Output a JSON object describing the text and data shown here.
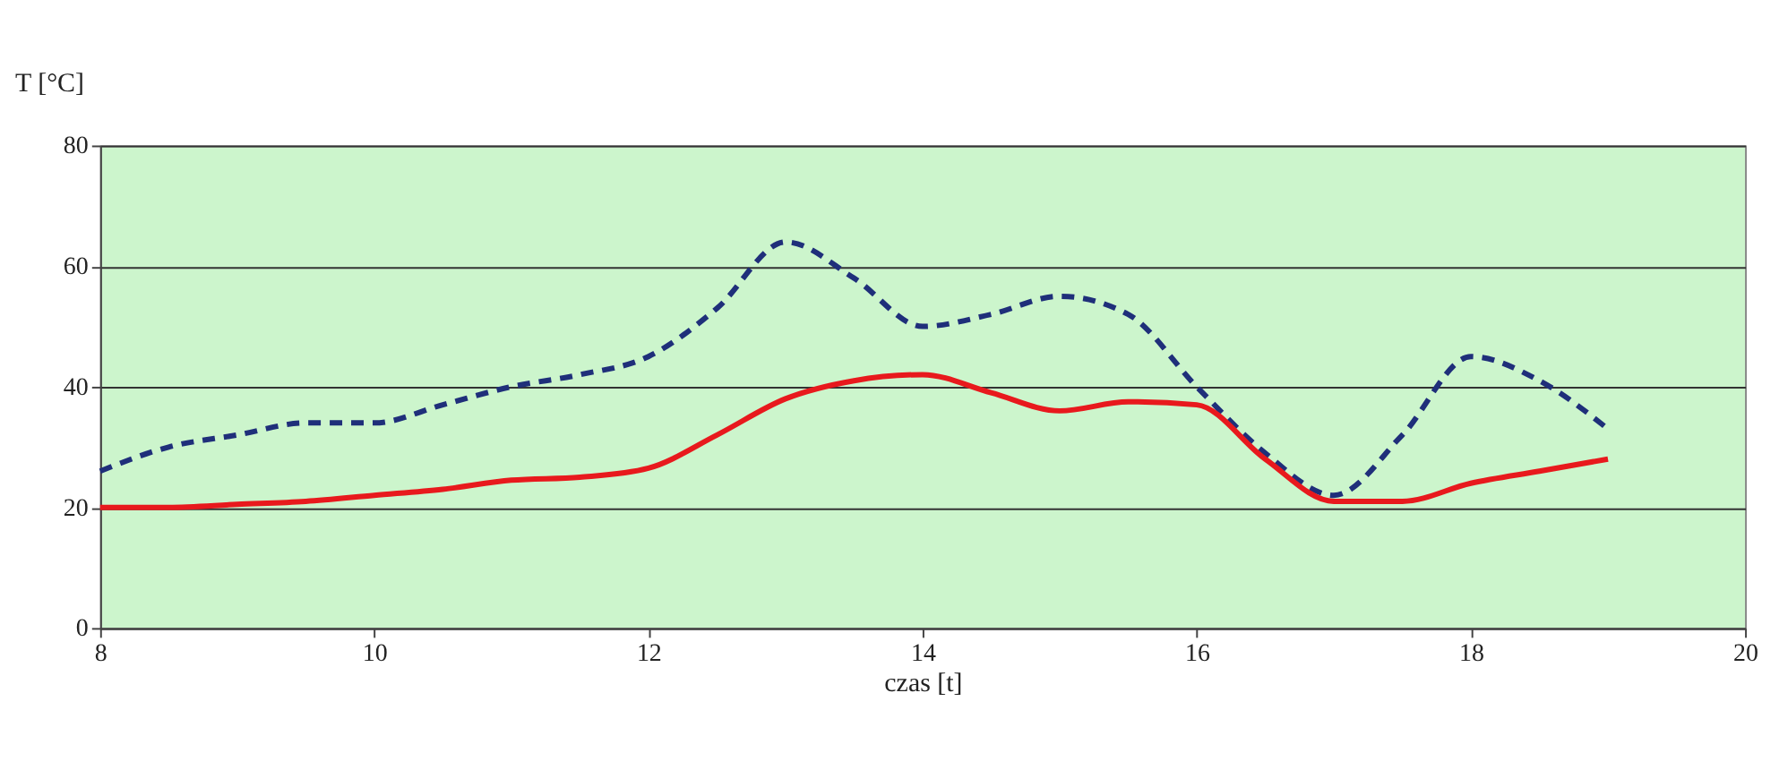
{
  "chart_data": {
    "type": "line",
    "xlabel": "czas [t]",
    "ylabel": "T [°C]",
    "xlim": [
      8,
      20
    ],
    "xticks": [
      8,
      10,
      12,
      14,
      16,
      18,
      20
    ],
    "ylim": [
      0,
      80
    ],
    "yticks": [
      0,
      20,
      40,
      60,
      80
    ],
    "grid": "y",
    "marker": "none",
    "x": [
      8,
      8.5,
      9,
      9.5,
      10,
      10.5,
      11,
      11.5,
      12,
      12.5,
      13,
      13.5,
      14,
      14.5,
      15,
      15.5,
      16,
      16.5,
      17,
      17.5,
      18,
      18.5,
      19
    ],
    "series": [
      {
        "color": "#1f2f7a",
        "line_style": "dashed",
        "values": [
          26,
          30,
          32,
          34,
          34,
          37,
          40,
          42,
          45,
          53,
          64,
          58,
          50,
          52,
          55,
          52,
          40,
          29,
          22,
          32,
          45,
          41,
          33
        ]
      },
      {
        "color": "#e8191d",
        "line_style": "solid",
        "values": [
          20,
          20,
          20.5,
          21,
          22,
          23,
          24.5,
          25,
          26.5,
          32,
          38,
          41,
          42,
          39,
          36,
          37.5,
          37,
          28,
          21,
          21,
          24,
          26,
          28
        ]
      }
    ]
  }
}
